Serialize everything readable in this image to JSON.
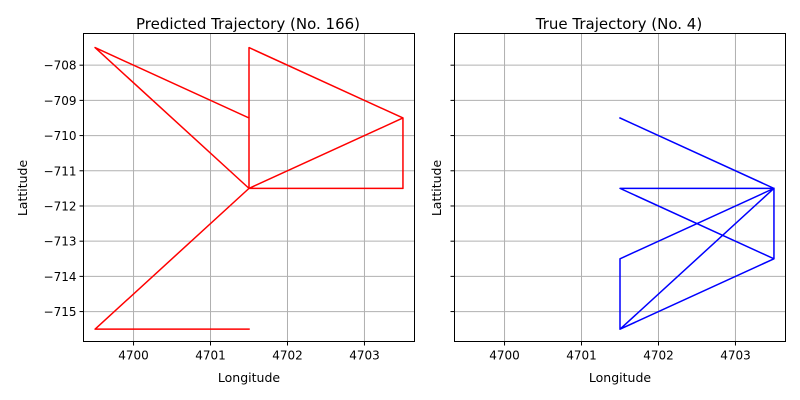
{
  "chart_data": [
    {
      "type": "line",
      "title": "Predicted Trajectory (No. 166)",
      "xlabel": "Longitude",
      "ylabel": "Lattitude",
      "xlim": [
        4699.35,
        4703.65
      ],
      "ylim": [
        -715.85,
        -707.1
      ],
      "xticks": [
        4700,
        4701,
        4702,
        4703
      ],
      "yticks": [
        -708,
        -709,
        -710,
        -711,
        -712,
        -713,
        -714,
        -715
      ],
      "show_yticklabels": true,
      "grid": true,
      "series": [
        {
          "color": "#ff0000",
          "x": [
            4701.5,
            4701.5,
            4699.5,
            4701.5,
            4703.5,
            4703.5,
            4701.5,
            4701.5,
            4703.5,
            4701.5,
            4701.5,
            4699.5,
            4701.5
          ],
          "y": [
            -709.5,
            -709.5,
            -707.5,
            -711.5,
            -709.5,
            -711.5,
            -711.5,
            -707.5,
            -709.5,
            -711.5,
            -711.5,
            -715.5,
            -715.5
          ]
        }
      ]
    },
    {
      "type": "line",
      "title": "True Trajectory (No. 4)",
      "xlabel": "Longitude",
      "ylabel": "Lattitude",
      "xlim": [
        4699.35,
        4703.65
      ],
      "ylim": [
        -715.85,
        -707.1
      ],
      "xticks": [
        4700,
        4701,
        4702,
        4703
      ],
      "yticks": [
        -708,
        -709,
        -710,
        -711,
        -712,
        -713,
        -714,
        -715
      ],
      "show_yticklabels": false,
      "grid": true,
      "series": [
        {
          "color": "#0000ff",
          "x": [
            4701.5,
            4703.5,
            4701.5,
            4703.5,
            4703.5,
            4701.5,
            4701.5,
            4703.5,
            4701.5,
            4703.5,
            4703.5
          ],
          "y": [
            -709.5,
            -711.5,
            -711.5,
            -713.5,
            -713.5,
            -715.5,
            -713.5,
            -711.5,
            -715.5,
            -713.5,
            -711.5
          ]
        }
      ]
    }
  ]
}
